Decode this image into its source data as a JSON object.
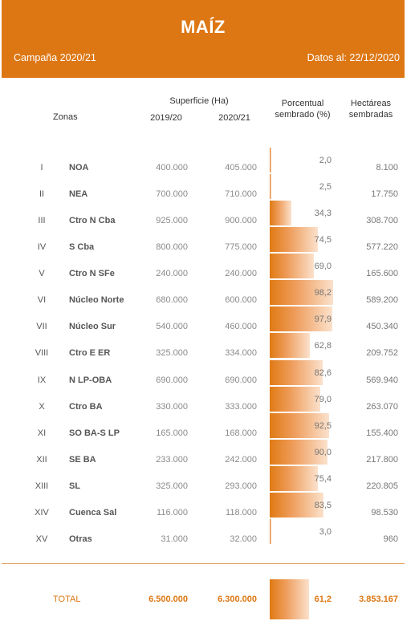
{
  "header": {
    "title": "MAÍZ",
    "campaign": "Campaña 2020/21",
    "data_date": "Datos al: 22/12/2020"
  },
  "columns": {
    "zonas": "Zonas",
    "superficie": "Superficie (Ha)",
    "y1": "2019/20",
    "y2": "2020/21",
    "pct_line1": "Porcentual",
    "pct_line2": "sembrado (%)",
    "ha_line1": "Hectáreas",
    "ha_line2": "sembradas"
  },
  "chart_data": {
    "type": "table",
    "x_max": 100,
    "rows": [
      {
        "roman": "I",
        "zone": "NOA",
        "s1": "400.000",
        "s2": "405.000",
        "pct": 2.0,
        "pct_label": "2,0",
        "ha": "8.100"
      },
      {
        "roman": "II",
        "zone": "NEA",
        "s1": "700.000",
        "s2": "710.000",
        "pct": 2.5,
        "pct_label": "2,5",
        "ha": "17.750"
      },
      {
        "roman": "III",
        "zone": "Ctro N Cba",
        "s1": "925.000",
        "s2": "900.000",
        "pct": 34.3,
        "pct_label": "34,3",
        "ha": "308.700"
      },
      {
        "roman": "IV",
        "zone": "S Cba",
        "s1": "800.000",
        "s2": "775.000",
        "pct": 74.5,
        "pct_label": "74,5",
        "ha": "577.220"
      },
      {
        "roman": "V",
        "zone": "Ctro N SFe",
        "s1": "240.000",
        "s2": "240.000",
        "pct": 69.0,
        "pct_label": "69,0",
        "ha": "165.600"
      },
      {
        "roman": "VI",
        "zone": "Núcleo Norte",
        "s1": "680.000",
        "s2": "600.000",
        "pct": 98.2,
        "pct_label": "98,2",
        "ha": "589.200"
      },
      {
        "roman": "VII",
        "zone": "Núcleo Sur",
        "s1": "540.000",
        "s2": "460.000",
        "pct": 97.9,
        "pct_label": "97,9",
        "ha": "450.340"
      },
      {
        "roman": "VIII",
        "zone": "Ctro E ER",
        "s1": "325.000",
        "s2": "334.000",
        "pct": 62.8,
        "pct_label": "62,8",
        "ha": "209.752"
      },
      {
        "roman": "IX",
        "zone": "N LP-OBA",
        "s1": "690.000",
        "s2": "690.000",
        "pct": 82.6,
        "pct_label": "82,6",
        "ha": "569.940"
      },
      {
        "roman": "X",
        "zone": "Ctro BA",
        "s1": "330.000",
        "s2": "333.000",
        "pct": 79.0,
        "pct_label": "79,0",
        "ha": "263.070"
      },
      {
        "roman": "XI",
        "zone": "SO BA-S LP",
        "s1": "165.000",
        "s2": "168.000",
        "pct": 92.5,
        "pct_label": "92,5",
        "ha": "155.400"
      },
      {
        "roman": "XII",
        "zone": "SE BA",
        "s1": "233.000",
        "s2": "242.000",
        "pct": 90.0,
        "pct_label": "90,0",
        "ha": "217.800"
      },
      {
        "roman": "XIII",
        "zone": "SL",
        "s1": "325.000",
        "s2": "293.000",
        "pct": 75.4,
        "pct_label": "75,4",
        "ha": "220.805"
      },
      {
        "roman": "XIV",
        "zone": "Cuenca Sal",
        "s1": "116.000",
        "s2": "118.000",
        "pct": 83.5,
        "pct_label": "83,5",
        "ha": "98.530"
      },
      {
        "roman": "XV",
        "zone": "Otras",
        "s1": "31.000",
        "s2": "32.000",
        "pct": 3.0,
        "pct_label": "3,0",
        "ha": "960"
      }
    ],
    "total": {
      "label": "TOTAL",
      "s1": "6.500.000",
      "s2": "6.300.000",
      "pct": 61.2,
      "pct_label": "61,2",
      "ha": "3.853.167"
    }
  },
  "colors": {
    "accent": "#dd7714",
    "bar_start": "#e07a14",
    "bar_end": "#fbe1cc"
  }
}
